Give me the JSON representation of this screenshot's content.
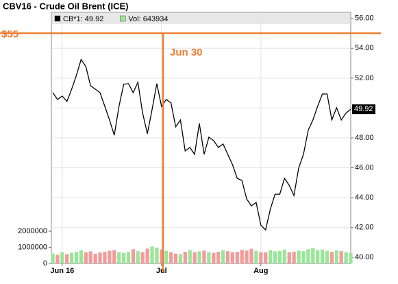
{
  "chart_data": {
    "type": "line",
    "title": "CBV16 - Crude Oil Brent (ICE)",
    "categories": [
      null,
      null,
      "Jun 16",
      null,
      null,
      null,
      null,
      null,
      null,
      null,
      null,
      null,
      null,
      null,
      null,
      null,
      null,
      null,
      null,
      null,
      null,
      null,
      null,
      "Jul",
      null,
      null,
      null,
      null,
      null,
      null,
      null,
      null,
      null,
      null,
      null,
      null,
      null,
      null,
      null,
      null,
      null,
      null,
      null,
      null,
      "Aug",
      null,
      null,
      null,
      null,
      null,
      null,
      null,
      null,
      null,
      null,
      null,
      null,
      null,
      null,
      null,
      null,
      null,
      null,
      null
    ],
    "series": [
      {
        "name": "CB*1: 49.92",
        "color": "#000000",
        "axis": "y2",
        "values": [
          51.03,
          50.57,
          50.8,
          50.44,
          51.26,
          52.18,
          53.24,
          52.78,
          51.49,
          51.26,
          51.03,
          50.11,
          49.2,
          48.18,
          50.11,
          51.59,
          51.63,
          51.03,
          51.72,
          49.66,
          48.28,
          49.89,
          51.63,
          50.11,
          50.57,
          50.34,
          48.74,
          49.2,
          47.13,
          47.36,
          46.9,
          48.97,
          46.9,
          48.05,
          47.82,
          47.36,
          47.59,
          46.9,
          46.21,
          45.29,
          45.15,
          43.91,
          43.45,
          43.68,
          42.16,
          41.84,
          43.22,
          44.23,
          44.23,
          45.29,
          44.83,
          44.14,
          45.98,
          46.9,
          48.51,
          49.2,
          50.11,
          50.94,
          50.94,
          49.2,
          50.02,
          49.2,
          49.66,
          49.92
        ]
      },
      {
        "name": "Vol: 643934",
        "type": "bar",
        "color": "#99e699",
        "down_color": "#f29b9b",
        "values": [
          620000,
          540000,
          700000,
          580000,
          660000,
          720000,
          810000,
          690000,
          750000,
          600000,
          680000,
          720000,
          790000,
          830000,
          700000,
          650000,
          720000,
          880000,
          760000,
          700000,
          920000,
          1050000,
          980000,
          870000,
          780000,
          700000,
          610000,
          590000,
          720000,
          820000,
          690000,
          750000,
          800000,
          700000,
          660000,
          720000,
          810000,
          760000,
          690000,
          720000,
          840000,
          800000,
          910000,
          780000,
          700000,
          690000,
          820000,
          750000,
          780000,
          860000,
          700000,
          730000,
          800000,
          760000,
          880000,
          950000,
          820000,
          870000,
          780000,
          720000,
          810000,
          760000,
          700000,
          643934
        ]
      }
    ],
    "ylim": [
      0,
      15600000
    ],
    "yticks": [
      0,
      1000000,
      2000000
    ],
    "y2lim": [
      39.6,
      56.4
    ],
    "y2ticks": [
      {
        "value": 40,
        "label": "40.00"
      },
      {
        "value": 42,
        "label": "42.00"
      },
      {
        "value": 44,
        "label": "44.00"
      },
      {
        "value": 46,
        "label": "46.00"
      },
      {
        "value": 48,
        "label": "48.00"
      },
      {
        "value": 50,
        "label": "50.00"
      },
      {
        "value": 52,
        "label": "52.00"
      },
      {
        "value": 54,
        "label": "54.00"
      },
      {
        "value": 56,
        "label": "56.00"
      }
    ],
    "last_value": {
      "value": 49.92,
      "label": "49.92"
    },
    "annotations": [
      {
        "type": "hline",
        "value": 55,
        "label": "$55",
        "color": "#ed7d31"
      },
      {
        "type": "vline",
        "label": "Jun 30",
        "color": "#ed7d31"
      }
    ],
    "grid": true
  }
}
